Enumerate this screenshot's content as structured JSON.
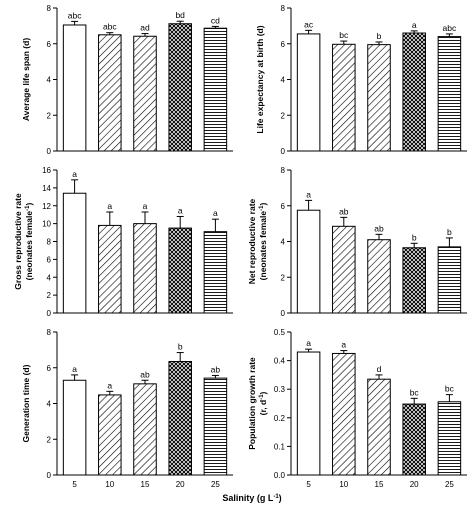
{
  "figure": {
    "xlabel": "Salinity (g L",
    "xlabel_sup": "-1",
    "xlabel_end": ")"
  },
  "chart_data": [
    {
      "type": "bar",
      "ylabel": "Average life span (d)",
      "ylabel2": "",
      "ylim": [
        0,
        8
      ],
      "yticks": [
        0,
        2,
        4,
        6,
        8
      ],
      "categories": [
        "5",
        "10",
        "15",
        "20",
        "25"
      ],
      "values": [
        7.05,
        6.5,
        6.42,
        7.12,
        6.87
      ],
      "errors": [
        0.2,
        0.12,
        0.15,
        0.14,
        0.1
      ],
      "labels": [
        "abc",
        "abc",
        "ad",
        "bd",
        "cd"
      ],
      "fills": [
        "solid",
        "diag-right",
        "diag-right",
        "crosshatch",
        "horizontal"
      ],
      "show_xticks": false
    },
    {
      "type": "bar",
      "ylabel": "Life expectancy at birth (d)",
      "ylabel2": "",
      "ylim": [
        0,
        8
      ],
      "yticks": [
        0,
        2,
        4,
        6,
        8
      ],
      "categories": [
        "5",
        "10",
        "15",
        "20",
        "25"
      ],
      "values": [
        6.55,
        5.97,
        5.95,
        6.6,
        6.4
      ],
      "errors": [
        0.2,
        0.18,
        0.15,
        0.12,
        0.15
      ],
      "labels": [
        "ac",
        "bc",
        "b",
        "a",
        "abc"
      ],
      "fills": [
        "solid",
        "diag-right",
        "diag-right",
        "crosshatch",
        "horizontal"
      ],
      "show_xticks": false
    },
    {
      "type": "bar",
      "ylabel": "Gross reproductive rate",
      "ylabel2": "(neonates female",
      "ylim": [
        0,
        16
      ],
      "yticks": [
        0,
        2,
        4,
        6,
        8,
        10,
        12,
        14,
        16
      ],
      "categories": [
        "5",
        "10",
        "15",
        "20",
        "25"
      ],
      "values": [
        13.4,
        9.8,
        10.0,
        9.5,
        9.1
      ],
      "errors": [
        1.5,
        1.5,
        1.3,
        1.3,
        1.4
      ],
      "labels": [
        "a",
        "a",
        "a",
        "a",
        "a"
      ],
      "fills": [
        "solid",
        "diag-right",
        "diag-right",
        "crosshatch",
        "horizontal"
      ],
      "show_xticks": false
    },
    {
      "type": "bar",
      "ylabel": "Net reproductive rate",
      "ylabel2": "(neonates female",
      "ylim": [
        0,
        8
      ],
      "yticks": [
        0,
        2,
        4,
        6,
        8
      ],
      "categories": [
        "5",
        "10",
        "15",
        "20",
        "25"
      ],
      "values": [
        5.75,
        4.85,
        4.1,
        3.65,
        3.7
      ],
      "errors": [
        0.55,
        0.5,
        0.3,
        0.25,
        0.5
      ],
      "labels": [
        "a",
        "ab",
        "ab",
        "b",
        "b"
      ],
      "fills": [
        "solid",
        "diag-right",
        "diag-right",
        "crosshatch",
        "horizontal"
      ],
      "show_xticks": false
    },
    {
      "type": "bar",
      "ylabel": "Generation time (d)",
      "ylabel2": "",
      "ylim": [
        0,
        8
      ],
      "yticks": [
        0,
        2,
        4,
        6,
        8
      ],
      "categories": [
        "5",
        "10",
        "15",
        "20",
        "25"
      ],
      "values": [
        5.3,
        4.48,
        5.1,
        6.35,
        5.42
      ],
      "errors": [
        0.3,
        0.2,
        0.2,
        0.5,
        0.15
      ],
      "labels": [
        "a",
        "a",
        "ab",
        "b",
        "ab"
      ],
      "fills": [
        "solid",
        "diag-right",
        "diag-right",
        "crosshatch",
        "horizontal"
      ],
      "show_xticks": true
    },
    {
      "type": "bar",
      "ylabel": "Population growth rate",
      "ylabel2": "(r, d",
      "ylim": [
        0,
        0.5
      ],
      "yticks": [
        0.0,
        0.1,
        0.2,
        0.3,
        0.4,
        0.5
      ],
      "categories": [
        "5",
        "10",
        "15",
        "20",
        "25"
      ],
      "values": [
        0.43,
        0.425,
        0.335,
        0.248,
        0.256
      ],
      "errors": [
        0.01,
        0.01,
        0.015,
        0.02,
        0.025
      ],
      "labels": [
        "a",
        "a",
        "d",
        "bc",
        "bc"
      ],
      "fills": [
        "solid",
        "diag-right",
        "diag-right",
        "crosshatch",
        "horizontal"
      ],
      "show_xticks": true
    }
  ]
}
